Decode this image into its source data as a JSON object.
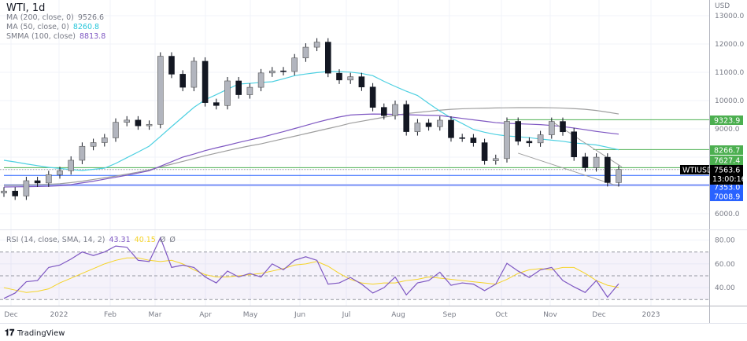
{
  "header": {
    "title": "WTI, 1d",
    "indicators": [
      {
        "label": "MA (200, close, 0)",
        "value": "9526.6",
        "color": "#787b86"
      },
      {
        "label": "MA (50, close, 0)",
        "value": "8260.8",
        "color": "#26c6da"
      },
      {
        "label": "SMMA (100, close)",
        "value": "8813.8",
        "color": "#7e57c2"
      }
    ]
  },
  "rsi_legend": {
    "label": "RSI (14, close, SMA, 14, 2)",
    "rsi": "43.31",
    "sma": "40.15",
    "e1": "Ø",
    "e2": "Ø",
    "rsi_color": "#7e57c2",
    "sma_color": "#f5d327"
  },
  "price_axis": {
    "currency": "USD",
    "ticks": [
      "13000.0",
      "12000.0",
      "11000.0",
      "10000.0",
      "9000.0",
      "6000.0"
    ],
    "tick_values": [
      13000,
      12000,
      11000,
      10000,
      9000,
      6000
    ]
  },
  "rsi_axis": {
    "ticks": [
      "80.00",
      "60.00",
      "40.00"
    ],
    "tick_values": [
      80,
      60,
      40
    ]
  },
  "time_axis": {
    "labels": [
      "Dec",
      "2022",
      "Feb",
      "Mar",
      "Apr",
      "May",
      "Jun",
      "Jul",
      "Aug",
      "Sep",
      "Oct",
      "Nov",
      "Dec",
      "2023"
    ]
  },
  "price_labels": [
    {
      "text": "9323.9",
      "value": 9323.9,
      "color": "#4caf50"
    },
    {
      "text": "8266.7",
      "value": 8266.7,
      "color": "#4caf50"
    },
    {
      "text": "7627.4",
      "value": 7627.4,
      "color": "#4caf50"
    },
    {
      "text": "7353.0",
      "value": 7353.0,
      "color": "#2962ff"
    },
    {
      "text": "7008.9",
      "value": 7008.9,
      "color": "#2962ff"
    }
  ],
  "last_price": {
    "symbol": "WTIUSD",
    "price": "7563.6",
    "countdown": "13:00:16",
    "value": 7563.6
  },
  "footer": {
    "brand": "TradingView"
  },
  "chart_data": {
    "type": "candlestick",
    "title": "WTI, 1d",
    "ylabel": "USD",
    "ylim": [
      6000,
      13000
    ],
    "dates": [
      "2021-11-26",
      "2021-12-03",
      "2021-12-10",
      "2021-12-17",
      "2021-12-24",
      "2021-12-31",
      "2022-01-07",
      "2022-01-14",
      "2022-01-21",
      "2022-01-28",
      "2022-02-04",
      "2022-02-11",
      "2022-02-18",
      "2022-02-25",
      "2022-03-04",
      "2022-03-11",
      "2022-03-18",
      "2022-03-25",
      "2022-04-01",
      "2022-04-08",
      "2022-04-15",
      "2022-04-22",
      "2022-04-29",
      "2022-05-06",
      "2022-05-13",
      "2022-05-20",
      "2022-05-27",
      "2022-06-03",
      "2022-06-10",
      "2022-06-17",
      "2022-06-24",
      "2022-07-01",
      "2022-07-08",
      "2022-07-15",
      "2022-07-22",
      "2022-07-29",
      "2022-08-05",
      "2022-08-12",
      "2022-08-19",
      "2022-08-26",
      "2022-09-02",
      "2022-09-09",
      "2022-09-16",
      "2022-09-23",
      "2022-09-30",
      "2022-10-07",
      "2022-10-14",
      "2022-10-21",
      "2022-10-28",
      "2022-11-04",
      "2022-11-11",
      "2022-11-18",
      "2022-11-25",
      "2022-12-02",
      "2022-12-09",
      "2022-12-16"
    ],
    "close": [
      6800,
      6626,
      7167,
      7086,
      7379,
      7521,
      7890,
      8382,
      8514,
      8682,
      9231,
      9310,
      9107,
      9159,
      11568,
      10933,
      10470,
      11390,
      9927,
      9826,
      10695,
      10207,
      10469,
      10977,
      11049,
      11028,
      11507,
      11887,
      12067,
      10968,
      10727,
      10843,
      10479,
      9759,
      9470,
      9862,
      8901,
      9209,
      9077,
      9306,
      8687,
      8679,
      8511,
      7874,
      7949,
      9264,
      8561,
      8505,
      8790,
      9261,
      8896,
      8008,
      7628,
      7998,
      7102,
      7563.6
    ],
    "series": [
      {
        "name": "MA (200, close, 0)",
        "color": "#9e9e9e",
        "values": [
          7000,
          7010,
          7020,
          7030,
          7040,
          7060,
          7100,
          7150,
          7210,
          7270,
          7330,
          7400,
          7470,
          7550,
          7650,
          7750,
          7850,
          7950,
          8050,
          8140,
          8230,
          8320,
          8400,
          8470,
          8560,
          8650,
          8740,
          8830,
          8920,
          9010,
          9100,
          9200,
          9270,
          9340,
          9410,
          9480,
          9540,
          9580,
          9620,
          9660,
          9690,
          9710,
          9720,
          9730,
          9740,
          9745,
          9750,
          9750,
          9750,
          9745,
          9735,
          9715,
          9690,
          9650,
          9590,
          9526.6
        ]
      },
      {
        "name": "MA (50, close, 0)",
        "color": "#4dd0e1",
        "values": [
          7889,
          7830,
          7760,
          7700,
          7639,
          7600,
          7560,
          7528,
          7570,
          7611,
          7778,
          7980,
          8180,
          8389,
          8730,
          9080,
          9420,
          9760,
          10028,
          10210,
          10400,
          10583,
          10610,
          10640,
          10667,
          10770,
          10880,
          10940,
          10990,
          11028,
          11020,
          11005,
          10960,
          10880,
          10680,
          10500,
          10330,
          10180,
          9900,
          9630,
          9389,
          9190,
          8980,
          8880,
          8800,
          8750,
          8720,
          8690,
          8640,
          8600,
          8560,
          8500,
          8470,
          8430,
          8350,
          8260.8
        ]
      },
      {
        "name": "SMMA (100, close)",
        "color": "#7e57c2",
        "values": [
          6944,
          6950,
          6955,
          6962,
          6970,
          6990,
          7030,
          7090,
          7150,
          7220,
          7290,
          7360,
          7440,
          7520,
          7680,
          7840,
          8000,
          8110,
          8230,
          8330,
          8420,
          8520,
          8610,
          8694,
          8800,
          8900,
          9010,
          9120,
          9230,
          9330,
          9420,
          9490,
          9510,
          9525,
          9520,
          9510,
          9500,
          9490,
          9480,
          9472,
          9420,
          9370,
          9320,
          9270,
          9220,
          9194,
          9180,
          9165,
          9150,
          9120,
          9080,
          9030,
          8970,
          8910,
          8860,
          8813.8
        ]
      }
    ],
    "horizontal_levels": [
      {
        "value": 9323.9,
        "from": "2022-10-07",
        "color": "#4caf50"
      },
      {
        "value": 8266.7,
        "from": "2022-11-30",
        "color": "#4caf50"
      },
      {
        "value": 7627.4,
        "from": "2021-11-26",
        "color": "#4caf50"
      },
      {
        "value": 7353.0,
        "from": "2021-11-26",
        "color": "#2962ff"
      },
      {
        "value": 7008.9,
        "from": "2021-11-26",
        "color": "#90a4f8"
      }
    ],
    "trend_lines": [
      {
        "from": [
          "2022-11-04",
          9270
        ],
        "to": [
          "2022-12-18",
          7650
        ],
        "color": "#9e9e9e"
      },
      {
        "from": [
          "2022-10-14",
          8140
        ],
        "to": [
          "2022-12-16",
          6970
        ],
        "color": "#9e9e9e"
      }
    ],
    "rsi": {
      "ylim": [
        20,
        90
      ],
      "bands": [
        70,
        50,
        30
      ],
      "rsi": [
        31,
        35.5,
        45,
        46,
        57,
        59,
        64,
        70,
        67,
        70,
        75,
        74,
        63,
        62,
        82,
        57,
        59,
        57,
        49,
        44,
        54,
        49,
        52,
        49,
        60,
        55,
        63,
        66,
        63,
        43,
        44,
        48.6,
        43,
        35.5,
        40,
        49,
        34,
        44,
        46,
        53,
        42,
        44,
        43,
        37.5,
        43,
        60.5,
        54,
        48.6,
        55,
        57,
        46,
        40.7,
        36,
        46,
        32,
        43.31
      ],
      "sma": [
        40,
        38,
        36,
        37,
        39,
        44,
        48,
        52,
        56,
        60,
        63,
        65,
        65,
        63,
        62,
        63,
        60,
        55,
        51,
        49,
        49,
        50,
        51,
        52,
        54,
        56,
        59,
        60,
        62,
        58,
        52,
        47,
        44,
        43,
        44,
        44,
        46,
        47,
        49,
        48,
        47,
        46,
        45,
        44,
        43,
        47,
        52,
        55,
        56,
        55,
        57,
        57,
        52,
        46,
        42,
        40.15
      ]
    },
    "grid": true
  }
}
